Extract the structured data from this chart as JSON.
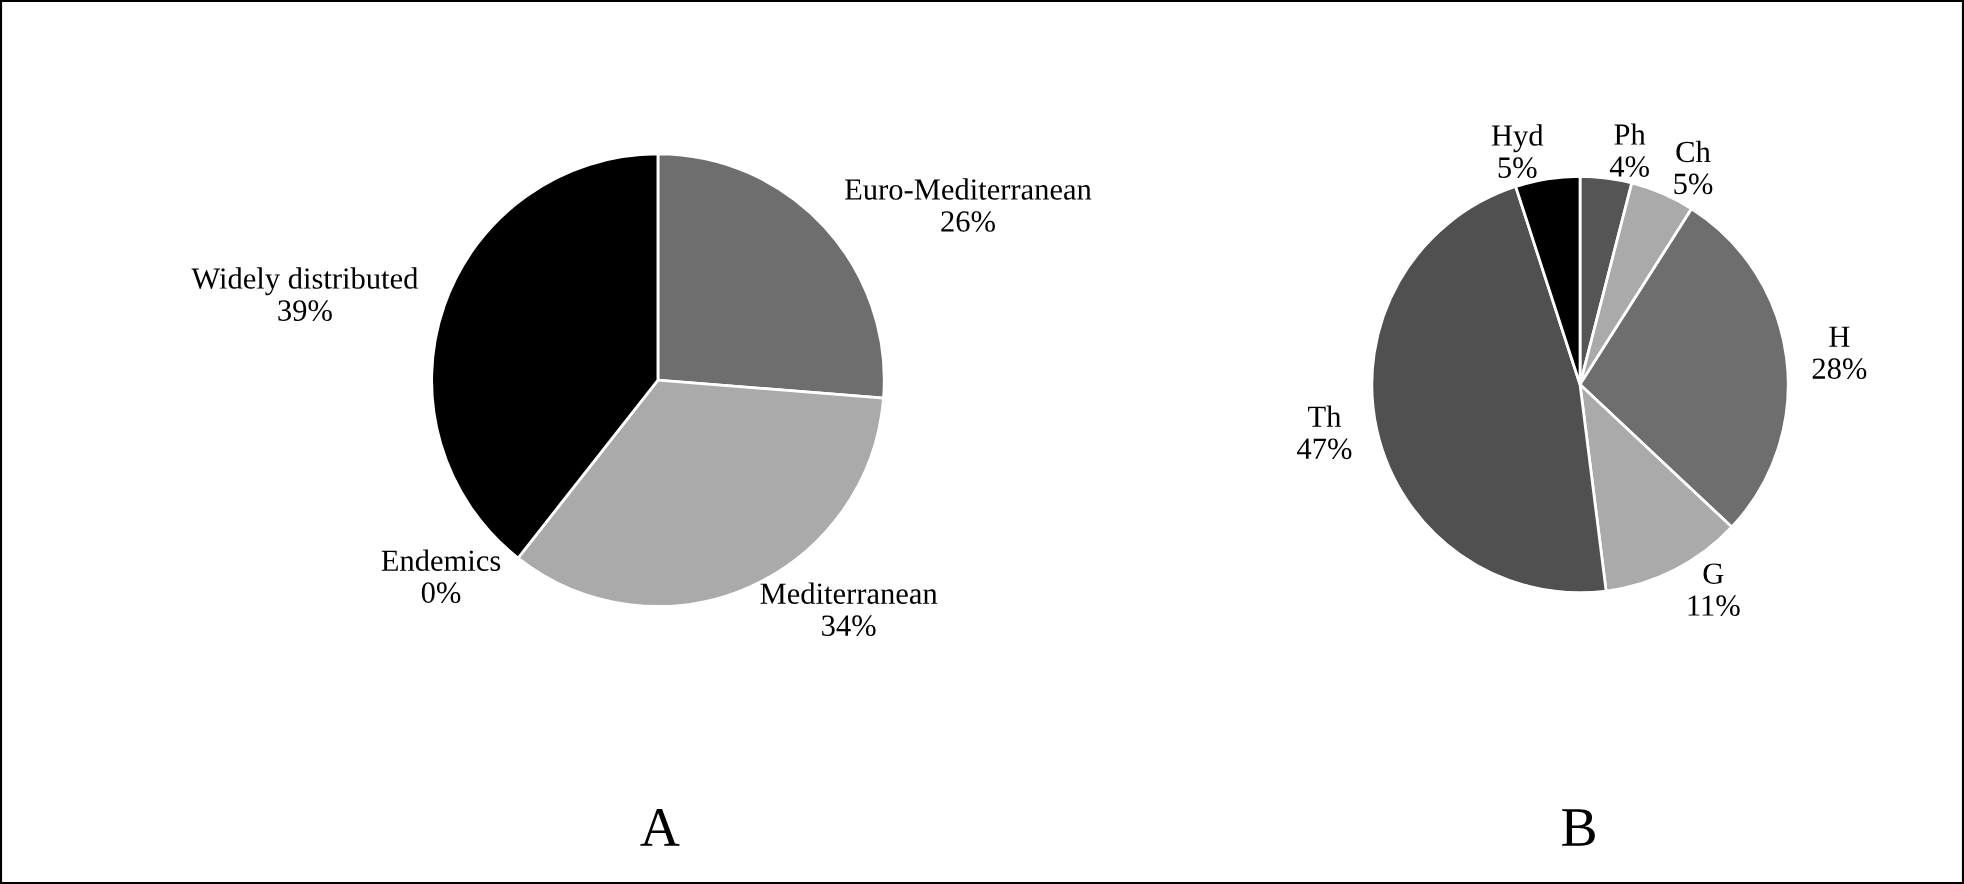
{
  "chart_data": [
    {
      "type": "pie",
      "categories": [
        "Euro-Mediterranean",
        "Mediterranean",
        "Endemics",
        "Widely distributed"
      ],
      "values": [
        26,
        34,
        0,
        39
      ],
      "value_labels": [
        "26%",
        "34%",
        "0%",
        "39%"
      ],
      "colors": [
        "#6e6e6e",
        "#aaaaaa",
        "#ffffff",
        "#000000"
      ],
      "annotations": [
        "A"
      ]
    },
    {
      "type": "pie",
      "categories": [
        "Ph",
        "Ch",
        "H",
        "G",
        "Th",
        "Hyd"
      ],
      "values": [
        4,
        5,
        28,
        11,
        47,
        5
      ],
      "value_labels": [
        "4%",
        "5%",
        "28%",
        "11%",
        "47%",
        "5%"
      ],
      "colors": [
        "#555555",
        "#aaaaaa",
        "#6e6e6e",
        "#aaaaaa",
        "#505050",
        "#000000"
      ],
      "annotations": [
        "B"
      ]
    }
  ]
}
